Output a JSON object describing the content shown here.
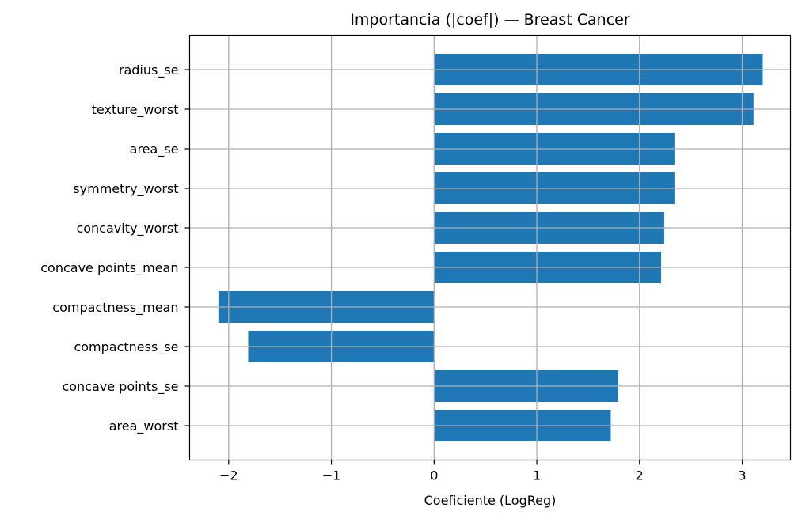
{
  "chart_data": {
    "type": "bar",
    "orientation": "horizontal",
    "title": "Importancia (|coef|) — Breast Cancer",
    "xlabel": "Coeficiente (LogReg)",
    "ylabel": "",
    "categories": [
      "radius_se",
      "texture_worst",
      "area_se",
      "symmetry_worst",
      "concavity_worst",
      "concave points_mean",
      "compactness_mean",
      "compactness_se",
      "concave points_se",
      "area_worst"
    ],
    "values": [
      3.2,
      3.11,
      2.34,
      2.34,
      2.24,
      2.21,
      -2.1,
      -1.81,
      1.79,
      1.72
    ],
    "xlim": [
      -2.38,
      3.47
    ],
    "xticks": [
      -2,
      -1,
      0,
      1,
      2,
      3
    ],
    "xtick_labels": [
      "−2",
      "−1",
      "0",
      "1",
      "2",
      "3"
    ],
    "grid": true,
    "bar_color": "#1f77b4"
  }
}
